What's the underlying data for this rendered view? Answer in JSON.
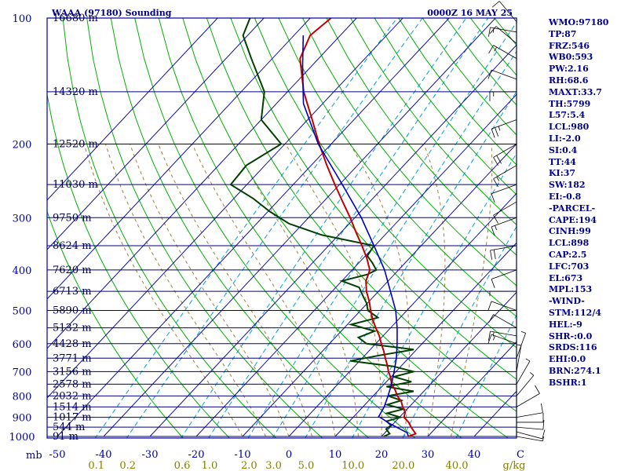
{
  "chart_data": {
    "type": "line",
    "title": "WAAA (97180) Sounding",
    "timestamp": "0000Z 16 MAY 25",
    "pressure_labels": [
      "100",
      "200",
      "300",
      "400",
      "500",
      "600",
      "700",
      "800",
      "900",
      "1000"
    ],
    "mb_label": "mb",
    "height_ticks": [
      {
        "p": 100,
        "label": "16680 m"
      },
      {
        "p": 150,
        "label": "14320 m"
      },
      {
        "p": 200,
        "label": "12520 m"
      },
      {
        "p": 250,
        "label": "11030 m"
      },
      {
        "p": 300,
        "label": "9750 m"
      },
      {
        "p": 350,
        "label": "8624 m"
      },
      {
        "p": 400,
        "label": "7620 m"
      },
      {
        "p": 450,
        "label": "6713 m"
      },
      {
        "p": 500,
        "label": "5890 m"
      },
      {
        "p": 550,
        "label": "5132 m"
      },
      {
        "p": 600,
        "label": "4428 m"
      },
      {
        "p": 650,
        "label": "3771 m"
      },
      {
        "p": 700,
        "label": "3156 m"
      },
      {
        "p": 750,
        "label": "2578 m"
      },
      {
        "p": 800,
        "label": "2032 m"
      },
      {
        "p": 850,
        "label": "1514 m"
      },
      {
        "p": 900,
        "label": "1017 m"
      },
      {
        "p": 950,
        "label": "544 m"
      },
      {
        "p": 1000,
        "label": "91 m"
      }
    ],
    "temp_ticks": [
      "-50",
      "-40",
      "-30",
      "-20",
      "-10",
      "0",
      "10",
      "20",
      "30",
      "40",
      "C"
    ],
    "temp_tick_values": [
      -50,
      -40,
      -30,
      -20,
      -10,
      0,
      10,
      20,
      30,
      40,
      50
    ],
    "mixing_ratio_labels": [
      "0.1",
      "0.2",
      "0.6",
      "1.0",
      "2.0",
      "3.0",
      "5.0",
      "10.0",
      "20.0",
      "40.0",
      "g/kg"
    ],
    "mixing_ratio_values": [
      0.1,
      0.2,
      0.6,
      1.0,
      2.0,
      3.0,
      5.0,
      10.0,
      20.0,
      40.0
    ],
    "isotherm_values": [
      -100,
      -90,
      -80,
      -70,
      -60,
      -50,
      -40,
      -30,
      -20,
      -10,
      0,
      10,
      20,
      30,
      40,
      50
    ],
    "dry_adiabat_theta": [
      250,
      260,
      270,
      280,
      290,
      300,
      310,
      320,
      330,
      340,
      350,
      360,
      370,
      380,
      390,
      400,
      410,
      420,
      430,
      440,
      450,
      460,
      470,
      480,
      490,
      500
    ],
    "moist_adiabat_start": [
      -10,
      -5,
      0,
      5,
      10,
      15,
      20,
      25,
      30,
      35
    ],
    "temperature": {
      "p": [
        1000,
        985,
        950,
        925,
        900,
        875,
        850,
        825,
        800,
        775,
        750,
        725,
        700,
        675,
        650,
        625,
        600,
        575,
        550,
        525,
        500,
        475,
        450,
        425,
        400,
        375,
        350,
        325,
        300,
        275,
        250,
        225,
        200,
        175,
        150,
        125,
        110,
        100
      ],
      "t": [
        25.8,
        26.8,
        24.5,
        23.0,
        21.0,
        20.2,
        18.6,
        17.2,
        15.2,
        13.6,
        11.6,
        10.2,
        8.4,
        6.8,
        5.0,
        3.2,
        1.2,
        -0.8,
        -3.2,
        -5.6,
        -7.8,
        -10.0,
        -12.6,
        -14.8,
        -16.2,
        -19.2,
        -22.8,
        -26.8,
        -31.0,
        -35.8,
        -41.0,
        -46.6,
        -52.6,
        -59.0,
        -66.5,
        -74.0,
        -76.5,
        -75.5
      ]
    },
    "dewpoint": {
      "p": [
        1000,
        985,
        960,
        940,
        920,
        900,
        880,
        860,
        840,
        820,
        800,
        780,
        760,
        740,
        720,
        700,
        680,
        660,
        640,
        620,
        600,
        580,
        560,
        540,
        520,
        500,
        480,
        460,
        440,
        425,
        410,
        400,
        385,
        370,
        350,
        330,
        310,
        290,
        270,
        250,
        225,
        200,
        175,
        150,
        125,
        110,
        100
      ],
      "t": [
        20.5,
        21.2,
        19.5,
        19.8,
        18.0,
        20.2,
        16.5,
        19.2,
        14.8,
        17.0,
        13.2,
        17.8,
        11.0,
        15.4,
        10.6,
        13.8,
        8.4,
        -2.0,
        3.2,
        9.4,
        -2.0,
        -5.0,
        -2.8,
        -9.2,
        -4.8,
        -8.4,
        -10.2,
        -12.6,
        -15.0,
        -20.0,
        -15.8,
        -14.8,
        -17.0,
        -19.6,
        -20.2,
        -33.6,
        -43.0,
        -49.6,
        -55.8,
        -63.5,
        -64.0,
        -60.8,
        -70.0,
        -75.0,
        -84.5,
        -91.0,
        -93.0
      ]
    },
    "parcel": {
      "p": [
        1000,
        980,
        930,
        900,
        898,
        850,
        800,
        750,
        700,
        650,
        600,
        550,
        500,
        450,
        400,
        350,
        300,
        250,
        200,
        160,
        130,
        110
      ],
      "t": [
        25.8,
        24.8,
        19.0,
        15.8,
        15.4,
        14.6,
        13.2,
        11.6,
        9.6,
        7.4,
        4.6,
        1.4,
        -2.4,
        -7.4,
        -13.0,
        -20.2,
        -28.6,
        -39.4,
        -52.8,
        -64.2,
        -72.0,
        -78.0
      ]
    },
    "wind": [
      {
        "p": 1000,
        "dir": 280,
        "spd": 5
      },
      {
        "p": 975,
        "dir": 285,
        "spd": 10
      },
      {
        "p": 950,
        "dir": 275,
        "spd": 10
      },
      {
        "p": 925,
        "dir": 270,
        "spd": 10
      },
      {
        "p": 900,
        "dir": 260,
        "spd": 10
      },
      {
        "p": 850,
        "dir": 240,
        "spd": 10
      },
      {
        "p": 800,
        "dir": 220,
        "spd": 5
      },
      {
        "p": 750,
        "dir": 210,
        "spd": 5
      },
      {
        "p": 700,
        "dir": 190,
        "spd": 5
      },
      {
        "p": 650,
        "dir": 200,
        "spd": 5
      },
      {
        "p": 600,
        "dir": 110,
        "spd": 15
      },
      {
        "p": 575,
        "dir": 100,
        "spd": 15
      },
      {
        "p": 550,
        "dir": 120,
        "spd": 10
      },
      {
        "p": 500,
        "dir": 110,
        "spd": 10
      },
      {
        "p": 450,
        "dir": 90,
        "spd": 5
      },
      {
        "p": 400,
        "dir": 70,
        "spd": 10
      },
      {
        "p": 350,
        "dir": 80,
        "spd": 20
      },
      {
        "p": 300,
        "dir": 70,
        "spd": 15
      },
      {
        "p": 275,
        "dir": 60,
        "spd": 10
      },
      {
        "p": 250,
        "dir": 70,
        "spd": 10
      },
      {
        "p": 225,
        "dir": 60,
        "spd": 15
      },
      {
        "p": 200,
        "dir": 60,
        "spd": 20
      },
      {
        "p": 175,
        "dir": 70,
        "spd": 25
      },
      {
        "p": 150,
        "dir": 90,
        "spd": 15
      },
      {
        "p": 140,
        "dir": 110,
        "spd": 10
      },
      {
        "p": 125,
        "dir": 120,
        "spd": 15
      },
      {
        "p": 115,
        "dir": 130,
        "spd": 10
      },
      {
        "p": 108,
        "dir": 100,
        "spd": 15
      },
      {
        "p": 102,
        "dir": 140,
        "spd": 10
      }
    ]
  },
  "stats": [
    "WMO:97180",
    "TP:87",
    "FRZ:546",
    "WB0:593",
    "PW:2.16",
    "RH:68.6",
    "MAXT:33.7",
    "TH:5799",
    "L57:5.4",
    "LCL:980",
    "LI:-2.0",
    "SI:0.4",
    "TT:44",
    "KI:37",
    "SW:182",
    "EI:-0.8",
    "-PARCEL-",
    "CAPE:194",
    "CINH:99",
    "LCL:898",
    "CAP:2.5",
    "LFC:703",
    "EL:673",
    "MPL:153",
    "-WIND-",
    "STM:112/4",
    "HEL:-9",
    "SHR-:0.0",
    "SRDS:116",
    "EHI:0.0",
    "BRN:274.1",
    "BSHR:1"
  ],
  "colors": {
    "frame": "#0000a0",
    "isobar": "#000080",
    "isotherm": "#1010a0",
    "dry_adiabat": "#00b000",
    "mixing_ratio": "#00a0e0",
    "moist_adiabat": "#a08040",
    "temperature": "#c00000",
    "dewpoint": "#004000",
    "parcel": "#0000c0",
    "mr_text": "#808000",
    "wind": "#000000",
    "stats": "#00008b"
  }
}
